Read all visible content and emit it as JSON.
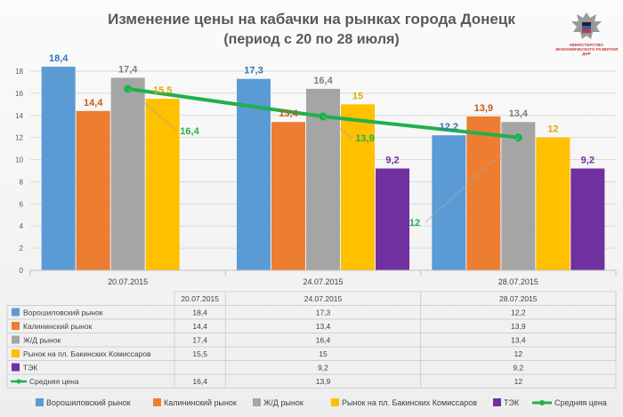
{
  "title": "Изменение цены на кабачки на рынках города Донецк",
  "subtitle": "(период с 20 по 28 июля)",
  "logo_text": "МИНИСТЕРСТВО ЭКОНОМИЧЕСКОГО РАЗВИТИЯ ДНР",
  "colors": {
    "Ворошиловский рынок": "#5b9bd5",
    "Калининский рынок": "#ed7d31",
    "Ж/Д рынок": "#a5a5a5",
    "Рынок на пл. Бакинских Комиссаров": "#ffc000",
    "ТЭК": "#7030a0",
    "Средняя цена": "#21b04b"
  },
  "label_colors": {
    "Ворошиловский рынок": "#2e75b6",
    "Калининский рынок": "#c55a11",
    "Ж/Д рынок": "#7f7f7f",
    "Рынок на пл. Бакинских Комиссаров": "#e0a800",
    "ТЭК": "#7030a0",
    "Средняя цена": "#21b04b"
  },
  "chart_data": {
    "type": "bar",
    "title": "Изменение цены на кабачки на рынках города Донецк",
    "subtitle": "(период с 20 по 28 июля)",
    "categories": [
      "20.07.2015",
      "24.07.2015",
      "28.07.2015"
    ],
    "ylim": [
      0,
      18
    ],
    "yticks": [
      0,
      2,
      4,
      6,
      8,
      10,
      12,
      14,
      16,
      18
    ],
    "grid": true,
    "legend_position": "bottom",
    "series": [
      {
        "name": "Ворошиловский рынок",
        "values": [
          18.4,
          17.3,
          12.2
        ],
        "labels": [
          "18,4",
          "17,3",
          "12,2"
        ]
      },
      {
        "name": "Калининский рынок",
        "values": [
          14.4,
          13.4,
          13.9
        ],
        "labels": [
          "14,4",
          "13,4",
          "13,9"
        ]
      },
      {
        "name": "Ж/Д рынок",
        "values": [
          17.4,
          16.4,
          13.4
        ],
        "labels": [
          "17,4",
          "16,4",
          "13,4"
        ]
      },
      {
        "name": "Рынок на пл. Бакинских Комиссаров",
        "values": [
          15.5,
          15,
          12
        ],
        "labels": [
          "15,5",
          "15",
          "12"
        ]
      },
      {
        "name": "ТЭК",
        "values": [
          null,
          9.2,
          9.2
        ],
        "labels": [
          "",
          "9,2",
          "9,2"
        ]
      }
    ],
    "line_series": {
      "name": "Средняя цена",
      "type": "line",
      "values": [
        16.4,
        13.9,
        12
      ],
      "labels": [
        "16,4",
        "13,9",
        "12"
      ]
    },
    "table": {
      "header": [
        "",
        "20.07.2015",
        "24.07.2015",
        "28.07.2015"
      ],
      "rows": [
        [
          "Ворошиловский рынок",
          "18,4",
          "17,3",
          "12,2"
        ],
        [
          "Калининский рынок",
          "14,4",
          "13,4",
          "13,9"
        ],
        [
          "Ж/Д рынок",
          "17,4",
          "16,4",
          "13,4"
        ],
        [
          "Рынок на пл. Бакинских Комиссаров",
          "15,5",
          "15",
          "12"
        ],
        [
          "ТЭК",
          "",
          "9,2",
          "9,2"
        ],
        [
          "Средняя цена",
          "16,4",
          "13,9",
          "12"
        ]
      ]
    }
  }
}
